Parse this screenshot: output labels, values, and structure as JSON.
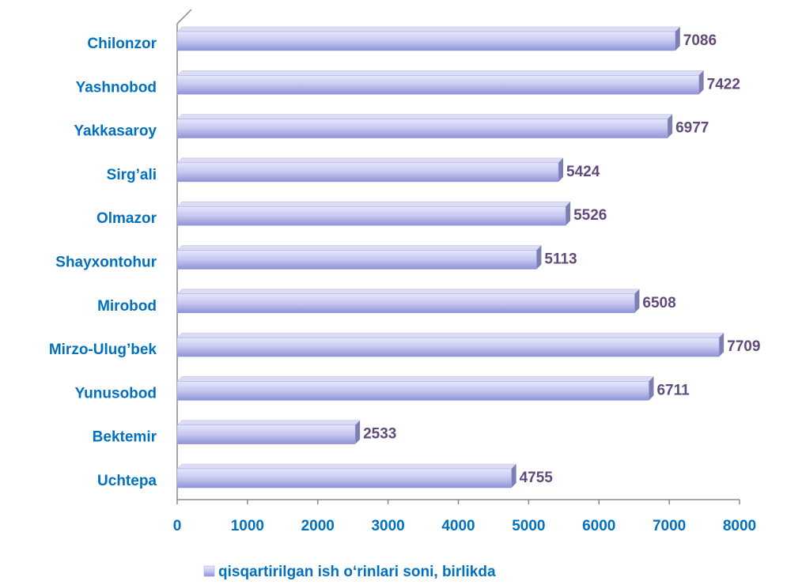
{
  "chart_data": {
    "type": "bar",
    "orientation": "horizontal",
    "categories": [
      "Chilonzor",
      "Yashnobod",
      "Yakkasaroy",
      "Sirg’ali",
      "Olmazor",
      "Shayxontohur",
      "Mirobod",
      "Mirzo-Ulug’bek",
      "Yunusobod",
      "Bektemir",
      "Uchtepa"
    ],
    "series": [
      {
        "name": "qisqartirilgan ish o‘rinlari soni, birlikda",
        "color": "#9fa3e0",
        "values": [
          7086,
          7422,
          6977,
          5424,
          5526,
          5113,
          6508,
          7709,
          6711,
          2533,
          4755
        ]
      }
    ],
    "xlim": [
      0,
      8000
    ],
    "xticks": [
      0,
      1000,
      2000,
      3000,
      4000,
      5000,
      6000,
      7000,
      8000
    ],
    "legend": "bottom"
  }
}
